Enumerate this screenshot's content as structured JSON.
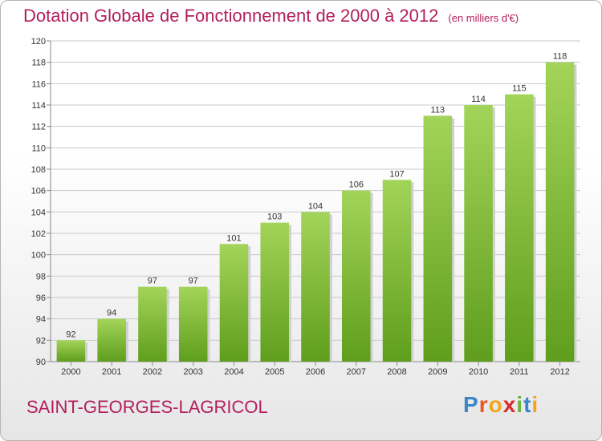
{
  "title": {
    "main": "Dotation Globale de Fonctionnement de 2000 à 2012",
    "unit": "(en milliers d'€)"
  },
  "commune": "SAINT-GEORGES-LAGRICOL",
  "logo": {
    "text": "Proxiti",
    "letters": [
      {
        "ch": "P",
        "color": "#3b86c6"
      },
      {
        "ch": "r",
        "color": "#e8572b"
      },
      {
        "ch": "o",
        "color": "#f2a51e"
      },
      {
        "ch": "x",
        "color": "#d92b32"
      },
      {
        "ch": "i",
        "color": "#6db33f"
      },
      {
        "ch": "t",
        "color": "#3b86c6"
      },
      {
        "ch": "i",
        "color": "#f2a51e"
      }
    ]
  },
  "colors": {
    "title": "#b31e5a",
    "bar_top": "#a3d45a",
    "bar_bottom": "#5f9e1c",
    "grid": "#c8c8c8",
    "axis_text": "#333333"
  },
  "chart_data": {
    "type": "bar",
    "categories": [
      "2000",
      "2001",
      "2002",
      "2003",
      "2004",
      "2005",
      "2006",
      "2007",
      "2008",
      "2009",
      "2010",
      "2011",
      "2012"
    ],
    "values": [
      92,
      94,
      97,
      97,
      101,
      103,
      104,
      106,
      107,
      113,
      114,
      115,
      118
    ],
    "ylim": [
      90,
      120
    ],
    "yticks": [
      90,
      92,
      94,
      96,
      98,
      100,
      102,
      104,
      106,
      108,
      110,
      112,
      114,
      116,
      118,
      120
    ],
    "grid": true,
    "data_labels": true
  }
}
